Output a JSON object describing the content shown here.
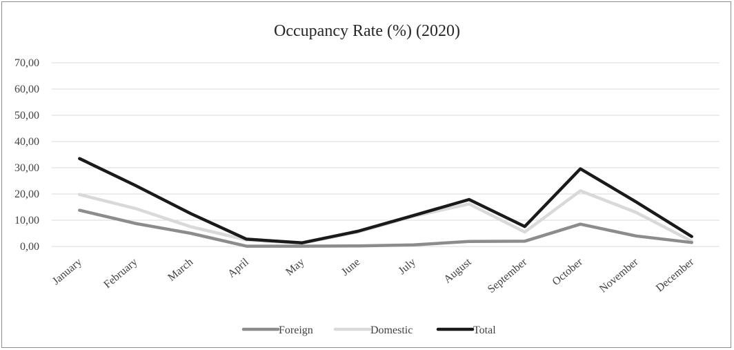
{
  "chart_data": {
    "type": "line",
    "title": "Occupancy Rate (%) (2020)",
    "xlabel": "",
    "ylabel": "",
    "ylim": [
      0,
      70
    ],
    "yticks": [
      "0,00",
      "10,00",
      "20,00",
      "30,00",
      "40,00",
      "50,00",
      "60,00",
      "70,00"
    ],
    "grid": true,
    "legend_position": "bottom",
    "categories": [
      "January",
      "February",
      "March",
      "April",
      "May",
      "June",
      "July",
      "August",
      "September",
      "October",
      "November",
      "December"
    ],
    "series": [
      {
        "name": "Foreign",
        "color": "#8c8c8c",
        "values": [
          13.8,
          8.8,
          5.0,
          0.1,
          0.1,
          0.2,
          0.6,
          1.9,
          2.0,
          8.5,
          4.0,
          1.5
        ]
      },
      {
        "name": "Domestic",
        "color": "#d9d9d9",
        "values": [
          19.8,
          14.5,
          7.5,
          2.5,
          1.2,
          5.5,
          11.5,
          16.2,
          5.5,
          21.2,
          13.0,
          2.0
        ]
      },
      {
        "name": "Total",
        "color": "#1a1a1a",
        "values": [
          33.5,
          23.3,
          12.5,
          2.8,
          1.4,
          5.8,
          11.8,
          17.9,
          7.6,
          29.6,
          17.0,
          3.8
        ]
      }
    ]
  }
}
